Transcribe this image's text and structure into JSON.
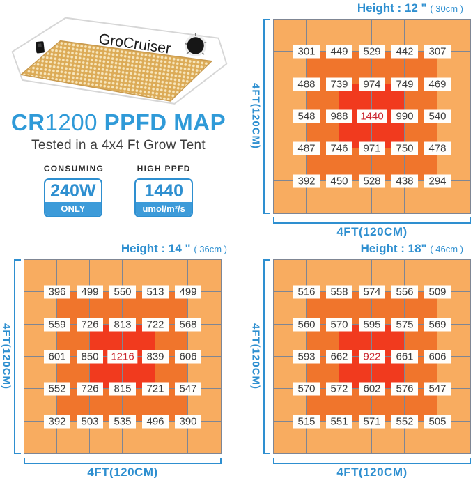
{
  "product": {
    "brand": "GroCruiser",
    "title": {
      "prefix": "CR",
      "model": "1200",
      "suffix": " PPFD MAP"
    },
    "subtitle": "Tested in a 4x4 Ft Grow Tent",
    "stats": [
      {
        "label": "CONSUMING",
        "value": "240W",
        "unit": "ONLY"
      },
      {
        "label": "HIGH PPFD",
        "value": "1440",
        "unit": "umol/m²/s"
      }
    ]
  },
  "colors": {
    "accent_blue": "#2E8FD0",
    "title_blue": "#2F9AD8",
    "stat_band": "#3D9BD9",
    "heat_low": "#F8AC60",
    "heat_mid": "#F0752C",
    "heat_high": "#F13A1E",
    "grid_line": "#7F8694",
    "value_text": "#3A3A3A",
    "peak_text": "#C9242C"
  },
  "chart_data": [
    {
      "type": "heatmap",
      "title": "Height : 12 \"",
      "height_cm": "( 30cm )",
      "xlabel": "4FT(120CM)",
      "ylabel": "4FT(120CM)",
      "grid_cells": 6,
      "values": [
        [
          301,
          449,
          529,
          442,
          307
        ],
        [
          488,
          739,
          974,
          749,
          469
        ],
        [
          548,
          988,
          1440,
          990,
          540
        ],
        [
          487,
          746,
          971,
          750,
          478
        ],
        [
          392,
          450,
          528,
          438,
          294
        ]
      ],
      "peak": 1440
    },
    {
      "type": "heatmap",
      "title": "Height : 14 \"",
      "height_cm": "( 36cm )",
      "xlabel": "4FT(120CM)",
      "ylabel": "4FT(120CM)",
      "grid_cells": 6,
      "values": [
        [
          396,
          499,
          550,
          513,
          499
        ],
        [
          559,
          726,
          813,
          722,
          568
        ],
        [
          601,
          850,
          1216,
          839,
          606
        ],
        [
          552,
          726,
          815,
          721,
          547
        ],
        [
          392,
          503,
          535,
          496,
          390
        ]
      ],
      "peak": 1216
    },
    {
      "type": "heatmap",
      "title": "Height : 18\"",
      "height_cm": "( 46cm )",
      "xlabel": "4FT(120CM)",
      "ylabel": "4FT(120CM)",
      "grid_cells": 6,
      "values": [
        [
          516,
          558,
          574,
          556,
          509
        ],
        [
          560,
          570,
          595,
          575,
          569
        ],
        [
          593,
          662,
          922,
          661,
          606
        ],
        [
          570,
          572,
          602,
          576,
          547
        ],
        [
          515,
          551,
          571,
          552,
          505
        ]
      ],
      "peak": 922
    }
  ]
}
